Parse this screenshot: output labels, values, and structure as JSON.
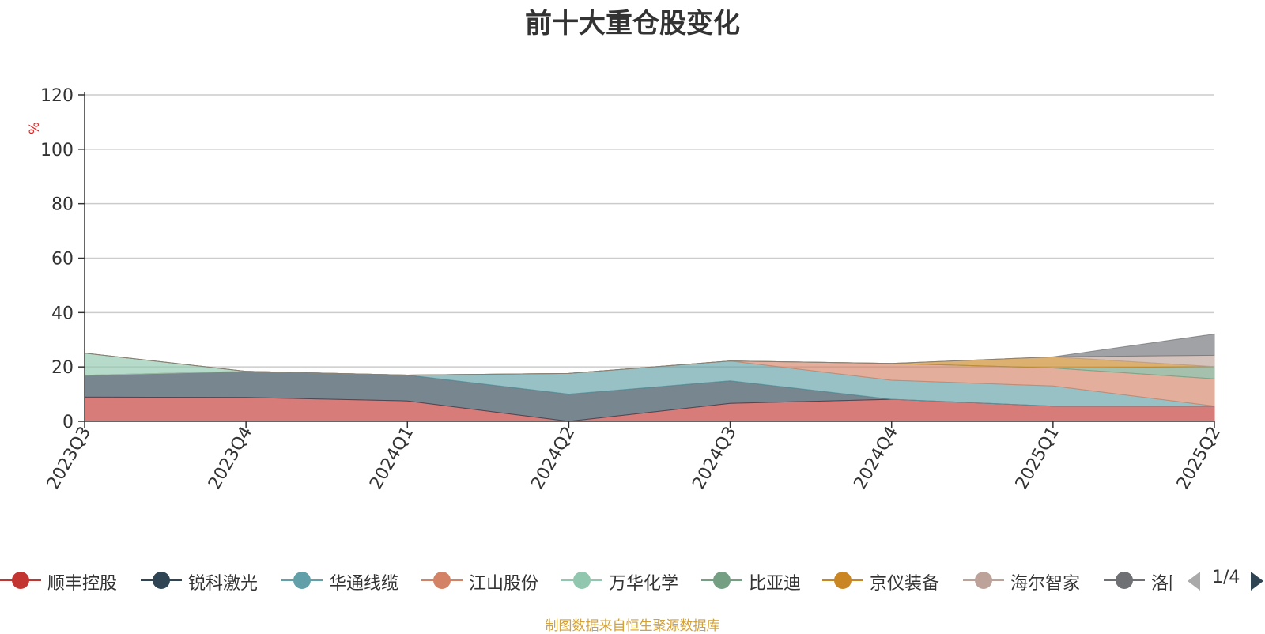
{
  "title": "前十大重仓股变化",
  "footer": "制图数据来自恒生聚源数据库",
  "pager": {
    "text": "1/4",
    "prev_icon": "triangle-left-icon",
    "next_icon": "triangle-right-icon"
  },
  "chart_data": {
    "type": "area",
    "stacked": true,
    "categories": [
      "2023Q3",
      "2023Q4",
      "2024Q1",
      "2024Q2",
      "2024Q3",
      "2024Q4",
      "2025Q1",
      "2025Q2"
    ],
    "ylabel": "%",
    "ylim": [
      0,
      120
    ],
    "yticks": [
      0,
      20,
      40,
      60,
      80,
      100,
      120
    ],
    "grid": true,
    "legend_position": "bottom",
    "series": [
      {
        "name": "顺丰控股",
        "color": "#c23531",
        "values": [
          8.9,
          8.8,
          7.5,
          0,
          6.6,
          8.1,
          5.6,
          5.6
        ]
      },
      {
        "name": "锐科激光",
        "color": "#2f4554",
        "values": [
          8.0,
          9.6,
          9.5,
          10.0,
          8.3,
          0,
          0,
          0
        ]
      },
      {
        "name": "华通线缆",
        "color": "#61a0a8",
        "values": [
          0,
          0,
          0,
          7.6,
          7.3,
          7.0,
          7.4,
          0
        ]
      },
      {
        "name": "江山股份",
        "color": "#d48265",
        "values": [
          0,
          0,
          0,
          0,
          0,
          6.2,
          6.6,
          10.0
        ]
      },
      {
        "name": "万华化学",
        "color": "#91c7ae",
        "values": [
          8.2,
          0,
          0,
          0,
          0,
          0,
          0,
          0
        ]
      },
      {
        "name": "比亚迪",
        "color": "#749f83",
        "values": [
          0,
          0,
          0,
          0,
          0,
          0,
          0,
          4.5
        ]
      },
      {
        "name": "京仪装备",
        "color": "#ca8622",
        "values": [
          0,
          0,
          0,
          0,
          0,
          0,
          4.1,
          0
        ]
      },
      {
        "name": "海尔智家",
        "color": "#bda29a",
        "values": [
          0,
          0,
          0,
          0,
          0,
          0,
          0,
          4.2
        ]
      },
      {
        "name": "洛阳钼业",
        "color": "#6e7074",
        "values": [
          0,
          0,
          0,
          0,
          0,
          0,
          0,
          7.8
        ]
      }
    ]
  }
}
